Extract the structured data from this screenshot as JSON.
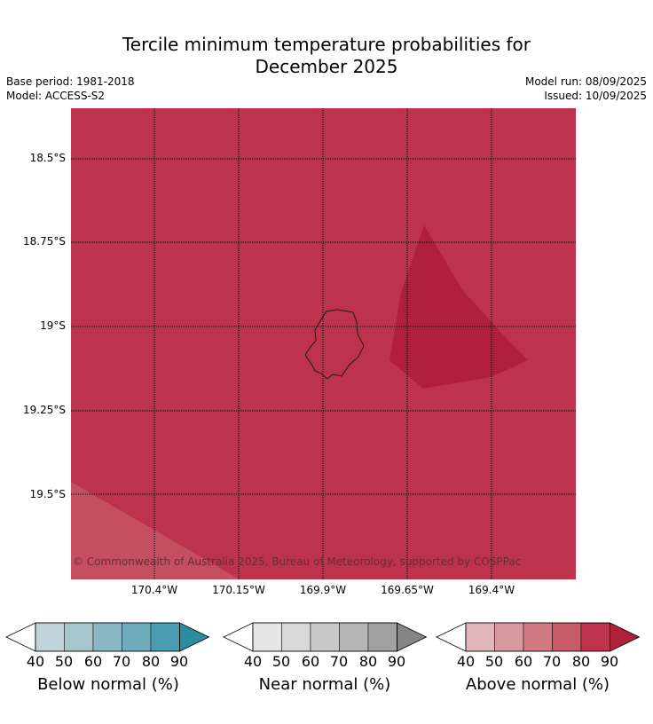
{
  "title_line1": "Tercile minimum temperature probabilities for",
  "title_line2": "December 2025",
  "base_period": "Base period: 1981-2018",
  "model": "Model: ACCESS-S2",
  "model_run": "Model run: 08/09/2025",
  "issued": "Issued: 10/09/2025",
  "map": {
    "lat_labels": [
      "18.5°S",
      "18.75°S",
      "19°S",
      "19.25°S",
      "19.5°S"
    ],
    "lon_labels": [
      "170.4°W",
      "170.15°W",
      "169.9°W",
      "169.65°W",
      "169.4°W"
    ],
    "copyright": "© Commonwealth of Australia 2025, Bureau of Meteorology, supported by COSPPac",
    "colors": {
      "above_80": "#bc334b",
      "above_90": "#b01f3c",
      "above_70": "#c44f5e"
    }
  },
  "legend": {
    "ticks": [
      "40",
      "50",
      "60",
      "70",
      "80",
      "90"
    ],
    "below": {
      "title": "Below normal (%)",
      "colors": [
        "#bed4da",
        "#a6c6cc",
        "#8ab7c4",
        "#6eacbd",
        "#4a9db0",
        "#2c8ba0"
      ]
    },
    "near": {
      "title": "Near normal (%)",
      "colors": [
        "#e6e6e6",
        "#d9d9d9",
        "#c8c8c8",
        "#b5b5b5",
        "#a1a1a1",
        "#858585"
      ]
    },
    "above": {
      "title": "Above normal (%)",
      "colors": [
        "#e2b7bc",
        "#d89aa1",
        "#d17a84",
        "#c75a67",
        "#bc334b",
        "#b01f3c"
      ]
    }
  }
}
